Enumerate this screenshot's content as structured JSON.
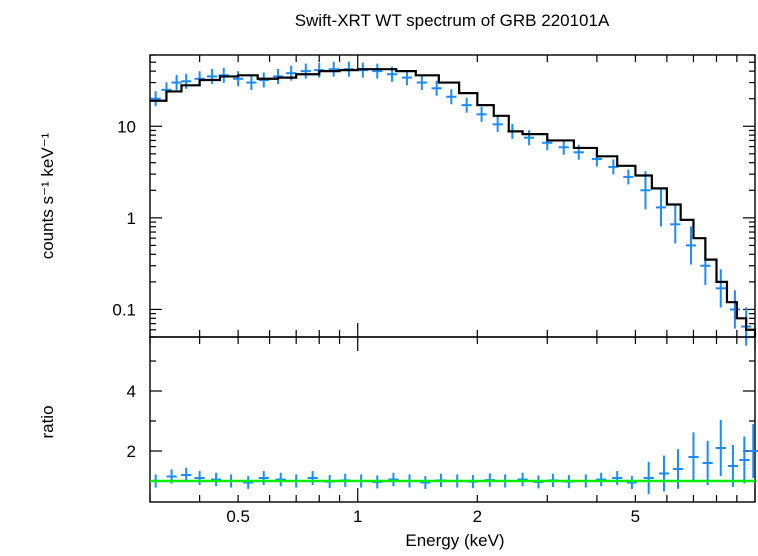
{
  "chart_data": [
    {
      "type": "scatter",
      "title": "Swift-XRT WT spectrum of GRB 220101A",
      "ylabel": "counts s⁻¹ keV⁻¹",
      "xlabel": "",
      "xscale": "log",
      "yscale": "log",
      "xlim": [
        0.3,
        10
      ],
      "ylim": [
        0.05,
        60
      ],
      "ytick_values": [
        0.1,
        1,
        10
      ],
      "ytick_labels": [
        "0.1",
        "1",
        "10"
      ],
      "series": [
        {
          "role": "data",
          "color": "#1a8cff",
          "x": [
            0.31,
            0.33,
            0.35,
            0.37,
            0.4,
            0.43,
            0.46,
            0.5,
            0.54,
            0.58,
            0.63,
            0.68,
            0.74,
            0.8,
            0.87,
            0.95,
            1.03,
            1.12,
            1.22,
            1.33,
            1.45,
            1.58,
            1.72,
            1.88,
            2.05,
            2.25,
            2.45,
            2.7,
            3.0,
            3.3,
            3.6,
            4.0,
            4.4,
            4.8,
            5.3,
            5.8,
            6.3,
            6.9,
            7.5,
            8.2,
            8.9,
            9.5
          ],
          "y": [
            20,
            25,
            30,
            31,
            33,
            35,
            36,
            33,
            30,
            32,
            35,
            38,
            40,
            41,
            42,
            42,
            41,
            40,
            37,
            34,
            30,
            26,
            21,
            17,
            13.5,
            10.5,
            8.8,
            7.5,
            6.6,
            5.9,
            5.2,
            4.4,
            3.6,
            2.8,
            2.0,
            1.3,
            0.85,
            0.5,
            0.3,
            0.17,
            0.1,
            0.065
          ]
        },
        {
          "role": "model",
          "color": "#000000",
          "x": [
            0.3,
            0.33,
            0.36,
            0.4,
            0.45,
            0.5,
            0.56,
            0.63,
            0.7,
            0.8,
            0.9,
            1.0,
            1.1,
            1.25,
            1.4,
            1.6,
            1.8,
            2.0,
            2.2,
            2.4,
            2.6,
            3.0,
            3.5,
            4.0,
            4.5,
            5.0,
            5.5,
            6.0,
            6.5,
            7.0,
            7.5,
            8.0,
            8.5,
            9.0,
            9.5,
            10.0
          ],
          "y": [
            19,
            24,
            28,
            32,
            35,
            36,
            33,
            34,
            37,
            40,
            41,
            42,
            42,
            40,
            36,
            30,
            23,
            17,
            13,
            8.8,
            8.2,
            7.0,
            5.8,
            4.7,
            3.7,
            2.9,
            2.1,
            1.4,
            0.95,
            0.6,
            0.35,
            0.2,
            0.12,
            0.08,
            0.06,
            0.05
          ]
        }
      ]
    },
    {
      "type": "scatter",
      "title": "",
      "ylabel": "ratio",
      "xlabel": "Energy (keV)",
      "xscale": "log",
      "yscale": "linear",
      "xlim": [
        0.3,
        10
      ],
      "ylim": [
        0.3,
        5.8
      ],
      "xtick_values": [
        0.5,
        1,
        2,
        5
      ],
      "xtick_labels": [
        "0.5",
        "1",
        "2",
        "5"
      ],
      "ytick_values": [
        2,
        4
      ],
      "ytick_labels": [
        "2",
        "4"
      ],
      "series": [
        {
          "role": "data",
          "color": "#1a8cff",
          "x": [
            0.31,
            0.34,
            0.37,
            0.4,
            0.44,
            0.48,
            0.53,
            0.58,
            0.64,
            0.7,
            0.77,
            0.85,
            0.93,
            1.02,
            1.12,
            1.23,
            1.35,
            1.48,
            1.62,
            1.78,
            1.95,
            2.15,
            2.35,
            2.6,
            2.85,
            3.1,
            3.4,
            3.75,
            4.1,
            4.5,
            4.9,
            5.4,
            5.9,
            6.4,
            7.0,
            7.6,
            8.2,
            8.8,
            9.4,
            9.9
          ],
          "y": [
            1.0,
            1.15,
            1.2,
            1.1,
            1.05,
            1.0,
            0.95,
            1.1,
            1.05,
            1.0,
            1.1,
            0.98,
            1.02,
            1.0,
            0.97,
            1.05,
            1.0,
            0.95,
            1.02,
            1.0,
            0.98,
            1.03,
            1.0,
            1.05,
            0.97,
            1.02,
            0.98,
            1.0,
            1.05,
            1.1,
            0.95,
            1.1,
            1.25,
            1.4,
            1.8,
            1.6,
            2.1,
            1.5,
            1.7,
            2.0
          ]
        },
        {
          "role": "model",
          "color": "#00ee00",
          "x": [
            0.3,
            10
          ],
          "y": [
            1.0,
            1.0
          ]
        }
      ]
    }
  ]
}
